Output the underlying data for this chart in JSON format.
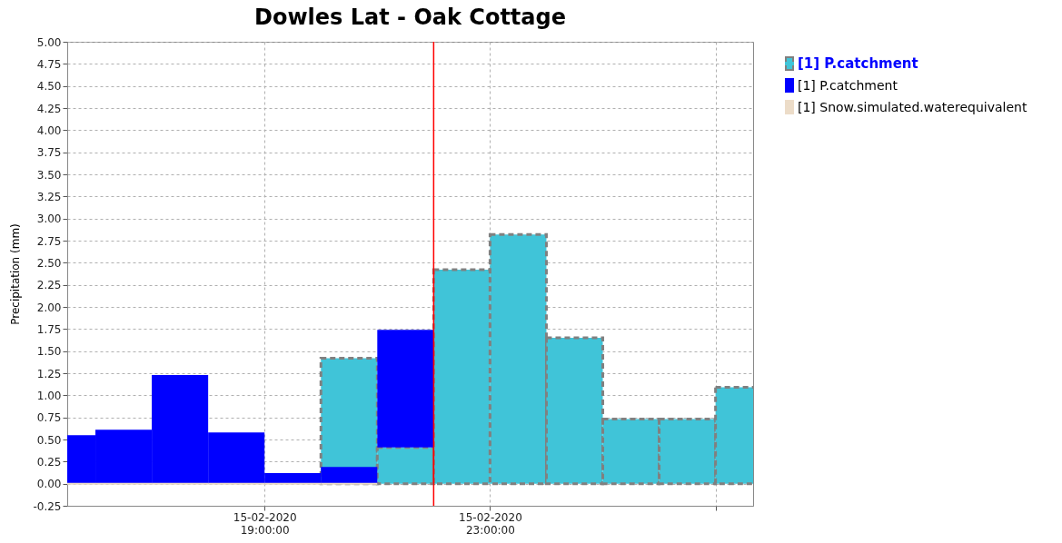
{
  "chart_data": {
    "type": "bar",
    "title": "Dowles Lat - Oak Cottage",
    "ylabel": "Precipitation (mm)",
    "x": [
      "2020-02-15T15:30",
      "2020-02-15T16:30",
      "2020-02-15T17:30",
      "2020-02-15T18:30",
      "2020-02-15T19:30",
      "2020-02-15T20:30",
      "2020-02-15T21:30",
      "2020-02-15T22:30",
      "2020-02-15T23:30",
      "2020-02-16T00:30",
      "2020-02-16T01:30",
      "2020-02-16T02:30",
      "2020-02-16T03:30"
    ],
    "series": [
      {
        "name": "[1] P.catchment",
        "color": "#40c4d8",
        "line_style": "dashed",
        "values": [
          null,
          null,
          null,
          null,
          null,
          1.42,
          0.41,
          2.42,
          2.82,
          1.65,
          0.73,
          0.73,
          1.09
        ]
      },
      {
        "name": "[1] P.catchment",
        "color": "#0000ff",
        "base": [
          0,
          0,
          0,
          0,
          0,
          0,
          0.41,
          null,
          null,
          null,
          null,
          null,
          null
        ],
        "values": [
          0.55,
          0.61,
          1.23,
          0.58,
          0.12,
          0.19,
          1.33,
          null,
          null,
          null,
          null,
          null,
          null
        ]
      },
      {
        "name": "[1] Snow.simulated.waterequivalent",
        "color": "#ecdcc8",
        "values": [
          0,
          0,
          0,
          0,
          0,
          0,
          null,
          null,
          null,
          null,
          null,
          null,
          null
        ]
      }
    ],
    "xlim": [
      "2020-02-15T15:30",
      "2020-02-16T03:40"
    ],
    "xticks": [
      {
        "value": "2020-02-15T19:00",
        "label": "15-02-2020\n19:00:00"
      },
      {
        "value": "2020-02-15T23:00",
        "label": "15-02-2020\n23:00:00"
      },
      {
        "value": "2020-02-16T03:00",
        "label": null
      }
    ],
    "ylim": [
      -0.25,
      5
    ],
    "yticks": [
      {
        "value": -0.25,
        "label": "-0.25"
      },
      {
        "value": 0,
        "label": "0.00"
      },
      0.25,
      {
        "value": 0.5,
        "label": "0.50"
      },
      0.75,
      {
        "value": 1,
        "label": "1.00"
      },
      1.25,
      {
        "value": 1.5,
        "label": "1.50"
      },
      1.75,
      {
        "value": 2,
        "label": "2.00"
      },
      2.25,
      {
        "value": 2.5,
        "label": "2.50"
      },
      2.75,
      {
        "value": 3,
        "label": "3.00"
      },
      3.25,
      {
        "value": 3.5,
        "label": "3.50"
      },
      3.75,
      {
        "value": 4,
        "label": "4.00"
      },
      4.25,
      {
        "value": 4.5,
        "label": "4.50"
      },
      4.75,
      {
        "value": 5,
        "label": "5.00"
      }
    ],
    "ref_lines": [
      {
        "axis": "x",
        "value": "2020-02-15T22:00",
        "color": "#ff0000"
      }
    ],
    "grid": true,
    "legend": "top right"
  }
}
